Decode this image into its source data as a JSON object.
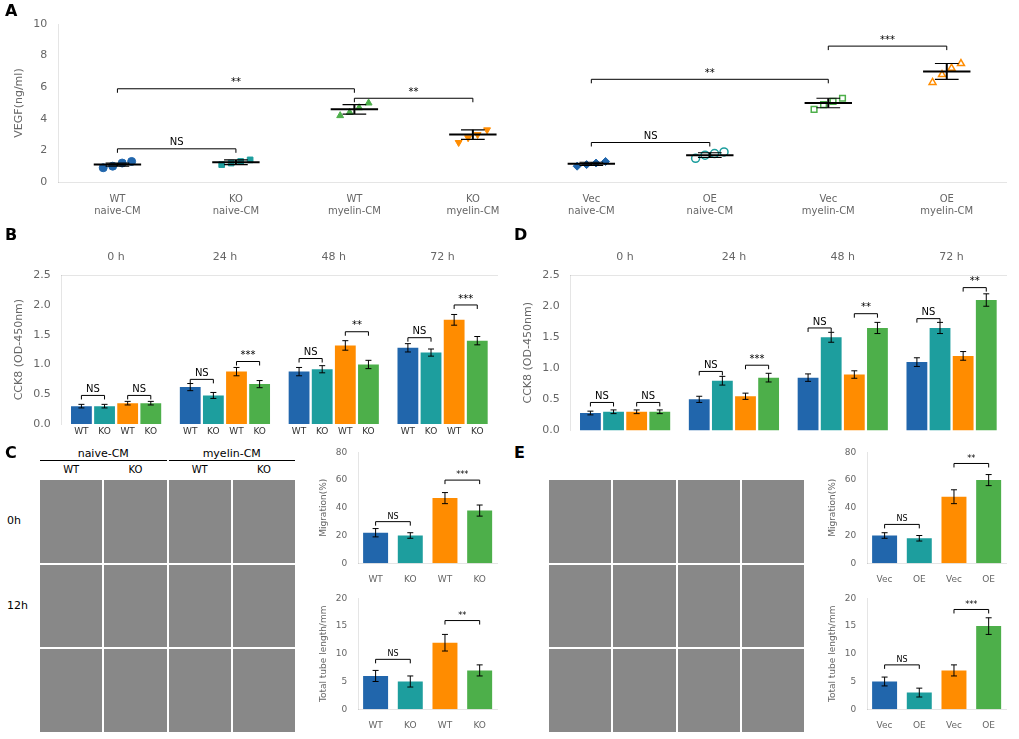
{
  "chart_data": [
    {
      "type": "scatter",
      "panel": "A",
      "ylabel": "VEGF(ng/ml)",
      "categories": [
        "WT\nnaive-CM",
        "KO\nnaive-CM",
        "WT\nmyelin-CM",
        "KO\nmyelin-CM",
        "Vec\nnaive-CM",
        "OE\nnaive-CM",
        "Vec\nmyelin-CM",
        "OE\nmyelin-CM"
      ],
      "colors": [
        "#2166ac",
        "#1d9e9e",
        "#4daf4a",
        "#ff8c00",
        "#2166ac",
        "#1d9e9e",
        "#4daf4a",
        "#ff8c00"
      ],
      "markers": [
        "circle",
        "square",
        "triangle",
        "triangle-down",
        "diamond",
        "circle-open",
        "square-open",
        "triangle-open"
      ],
      "points": [
        [
          0.9,
          1.0,
          1.2,
          1.3
        ],
        [
          1.1,
          1.2,
          1.3,
          1.4
        ],
        [
          4.2,
          4.4,
          4.7,
          5.0
        ],
        [
          2.5,
          2.8,
          3.0,
          3.3
        ],
        [
          1.0,
          1.1,
          1.2,
          1.3
        ],
        [
          1.5,
          1.7,
          1.8,
          1.9
        ],
        [
          4.6,
          4.9,
          5.1,
          5.3
        ],
        [
          6.3,
          6.8,
          7.2,
          7.5
        ]
      ],
      "means": [
        1.1,
        1.25,
        4.6,
        3.0,
        1.15,
        1.7,
        5.0,
        7.0
      ],
      "errors": [
        0.1,
        0.15,
        0.3,
        0.3,
        0.1,
        0.15,
        0.3,
        0.5
      ],
      "brackets": [
        {
          "x1": 0,
          "x2": 1,
          "y": 2.1,
          "label": "NS"
        },
        {
          "x1": 0,
          "x2": 2,
          "y": 5.9,
          "label": "**"
        },
        {
          "x1": 2,
          "x2": 3,
          "y": 5.3,
          "label": "**"
        },
        {
          "x1": 4,
          "x2": 5,
          "y": 2.5,
          "label": "NS"
        },
        {
          "x1": 4,
          "x2": 6,
          "y": 6.5,
          "label": "**"
        },
        {
          "x1": 6,
          "x2": 7,
          "y": 8.6,
          "label": "***"
        }
      ],
      "ylim": [
        0,
        10
      ],
      "yticks": [
        0,
        2,
        4,
        6,
        8,
        10
      ],
      "grid": false
    },
    {
      "type": "bar",
      "panel": "B",
      "ylabel": "CCK8 (OD-450nm)",
      "categories": [
        "0 h",
        "24 h",
        "48 h",
        "72 h"
      ],
      "bar_labels": [
        "WT",
        "KO",
        "WT",
        "KO"
      ],
      "series": [
        {
          "color": "#2166ac",
          "values": [
            0.3,
            0.62,
            0.88,
            1.28
          ],
          "errors": [
            0.03,
            0.06,
            0.07,
            0.07
          ]
        },
        {
          "color": "#1d9e9e",
          "values": [
            0.3,
            0.48,
            0.92,
            1.2
          ],
          "errors": [
            0.03,
            0.05,
            0.06,
            0.06
          ]
        },
        {
          "color": "#ff8c00",
          "values": [
            0.35,
            0.88,
            1.32,
            1.75
          ],
          "errors": [
            0.03,
            0.07,
            0.08,
            0.09
          ]
        },
        {
          "color": "#4daf4a",
          "values": [
            0.35,
            0.67,
            1.0,
            1.4
          ],
          "errors": [
            0.03,
            0.06,
            0.07,
            0.07
          ]
        }
      ],
      "brackets": [
        [
          {
            "x1": 0,
            "x2": 1,
            "y": 0.48,
            "label": "NS"
          },
          {
            "x1": 2,
            "x2": 3,
            "y": 0.48,
            "label": "NS"
          }
        ],
        [
          {
            "x1": 0,
            "x2": 1,
            "y": 0.75,
            "label": "NS"
          },
          {
            "x1": 2,
            "x2": 3,
            "y": 1.05,
            "label": "***"
          }
        ],
        [
          {
            "x1": 0,
            "x2": 1,
            "y": 1.1,
            "label": "NS"
          },
          {
            "x1": 2,
            "x2": 3,
            "y": 1.55,
            "label": "**"
          }
        ],
        [
          {
            "x1": 0,
            "x2": 1,
            "y": 1.45,
            "label": "NS"
          },
          {
            "x1": 2,
            "x2": 3,
            "y": 2.0,
            "label": "***"
          }
        ]
      ],
      "ylim": [
        0,
        2.5
      ],
      "yticks": [
        {
          "value": 0,
          "label": "0.0"
        },
        0.5,
        {
          "value": 1,
          "label": "1.0"
        },
        1.5,
        {
          "value": 2,
          "label": "2.0"
        },
        2.5
      ],
      "grid": false
    },
    {
      "type": "bar",
      "panel": "D",
      "ylabel": "CCK8 (OD-450nm)",
      "categories": [
        "0 h",
        "24 h",
        "48 h",
        "72 h"
      ],
      "series": [
        {
          "color": "#2166ac",
          "values": [
            0.28,
            0.5,
            0.85,
            1.1
          ],
          "errors": [
            0.03,
            0.05,
            0.06,
            0.07
          ]
        },
        {
          "color": "#1d9e9e",
          "values": [
            0.3,
            0.8,
            1.5,
            1.65
          ],
          "errors": [
            0.03,
            0.07,
            0.08,
            0.09
          ]
        },
        {
          "color": "#ff8c00",
          "values": [
            0.3,
            0.55,
            0.9,
            1.2
          ],
          "errors": [
            0.03,
            0.05,
            0.06,
            0.07
          ]
        },
        {
          "color": "#4daf4a",
          "values": [
            0.3,
            0.85,
            1.65,
            2.1
          ],
          "errors": [
            0.03,
            0.07,
            0.09,
            0.1
          ]
        }
      ],
      "brackets": [
        [
          {
            "x1": 0,
            "x2": 1,
            "y": 0.45,
            "label": "NS"
          },
          {
            "x1": 2,
            "x2": 3,
            "y": 0.45,
            "label": "NS"
          }
        ],
        [
          {
            "x1": 0,
            "x2": 1,
            "y": 0.95,
            "label": "NS"
          },
          {
            "x1": 2,
            "x2": 3,
            "y": 1.05,
            "label": "***"
          }
        ],
        [
          {
            "x1": 0,
            "x2": 1,
            "y": 1.65,
            "label": "NS"
          },
          {
            "x1": 2,
            "x2": 3,
            "y": 1.88,
            "label": "**"
          }
        ],
        [
          {
            "x1": 0,
            "x2": 1,
            "y": 1.8,
            "label": "NS"
          },
          {
            "x1": 2,
            "x2": 3,
            "y": 2.3,
            "label": "**"
          }
        ]
      ],
      "ylim": [
        0,
        2.5
      ],
      "yticks": [
        {
          "value": 0,
          "label": "0.0"
        },
        0.5,
        {
          "value": 1,
          "label": "1.0"
        },
        1.5,
        {
          "value": 2,
          "label": "2.0"
        },
        2.5
      ],
      "grid": false
    },
    {
      "type": "bar",
      "panel": "C",
      "ylabel": "Migration(%)",
      "image_labels": {
        "rows": [
          "0h",
          "12h"
        ],
        "groups": [
          "naive-CM",
          "myelin-CM"
        ],
        "columns": [
          "WT",
          "KO",
          "WT",
          "KO"
        ]
      },
      "categories": [
        "WT",
        "KO",
        "WT",
        "KO"
      ],
      "colors": [
        "#2166ac",
        "#1d9e9e",
        "#ff8c00",
        "#4daf4a"
      ],
      "values": [
        22,
        20,
        47,
        38
      ],
      "errors": [
        3,
        2,
        4,
        4
      ],
      "brackets": [
        {
          "x1": 0,
          "x2": 1,
          "y": 30,
          "label": "NS"
        },
        {
          "x1": 2,
          "x2": 3,
          "y": 60,
          "label": "***"
        }
      ],
      "ylim": [
        0,
        80
      ],
      "yticks": [
        0,
        20,
        40,
        60,
        80
      ],
      "grid": false
    },
    {
      "type": "bar",
      "panel": "C",
      "ylabel": "Total tube length/mm",
      "categories": [
        "WT",
        "KO",
        "WT",
        "KO"
      ],
      "colors": [
        "#2166ac",
        "#1d9e9e",
        "#ff8c00",
        "#4daf4a"
      ],
      "values": [
        6,
        5,
        12,
        7
      ],
      "errors": [
        1,
        1,
        1.5,
        1
      ],
      "brackets": [
        {
          "x1": 0,
          "x2": 1,
          "y": 9,
          "label": "NS"
        },
        {
          "x1": 2,
          "x2": 3,
          "y": 16,
          "label": "**"
        }
      ],
      "ylim": [
        0,
        20
      ],
      "yticks": [
        0,
        5,
        10,
        15,
        20
      ],
      "grid": false
    },
    {
      "type": "bar",
      "panel": "E",
      "ylabel": "Migration(%)",
      "categories": [
        "Vec",
        "OE",
        "Vec",
        "OE"
      ],
      "colors": [
        "#2166ac",
        "#1d9e9e",
        "#ff8c00",
        "#4daf4a"
      ],
      "values": [
        20,
        18,
        48,
        60
      ],
      "errors": [
        2,
        2,
        5,
        4
      ],
      "brackets": [
        {
          "x1": 0,
          "x2": 1,
          "y": 28,
          "label": "NS"
        },
        {
          "x1": 2,
          "x2": 3,
          "y": 72,
          "label": "**"
        }
      ],
      "ylim": [
        0,
        80
      ],
      "yticks": [
        0,
        20,
        40,
        60,
        80
      ],
      "grid": false
    },
    {
      "type": "bar",
      "panel": "E",
      "ylabel": "Total tube length/mm",
      "categories": [
        "Vec",
        "OE",
        "Vec",
        "OE"
      ],
      "colors": [
        "#2166ac",
        "#1d9e9e",
        "#ff8c00",
        "#4daf4a"
      ],
      "values": [
        5,
        3,
        7,
        15
      ],
      "errors": [
        0.8,
        0.8,
        1,
        1.5
      ],
      "brackets": [
        {
          "x1": 0,
          "x2": 1,
          "y": 8,
          "label": "NS"
        },
        {
          "x1": 2,
          "x2": 3,
          "y": 18,
          "label": "***"
        }
      ],
      "ylim": [
        0,
        20
      ],
      "yticks": [
        0,
        5,
        10,
        15,
        20
      ],
      "grid": false
    }
  ]
}
